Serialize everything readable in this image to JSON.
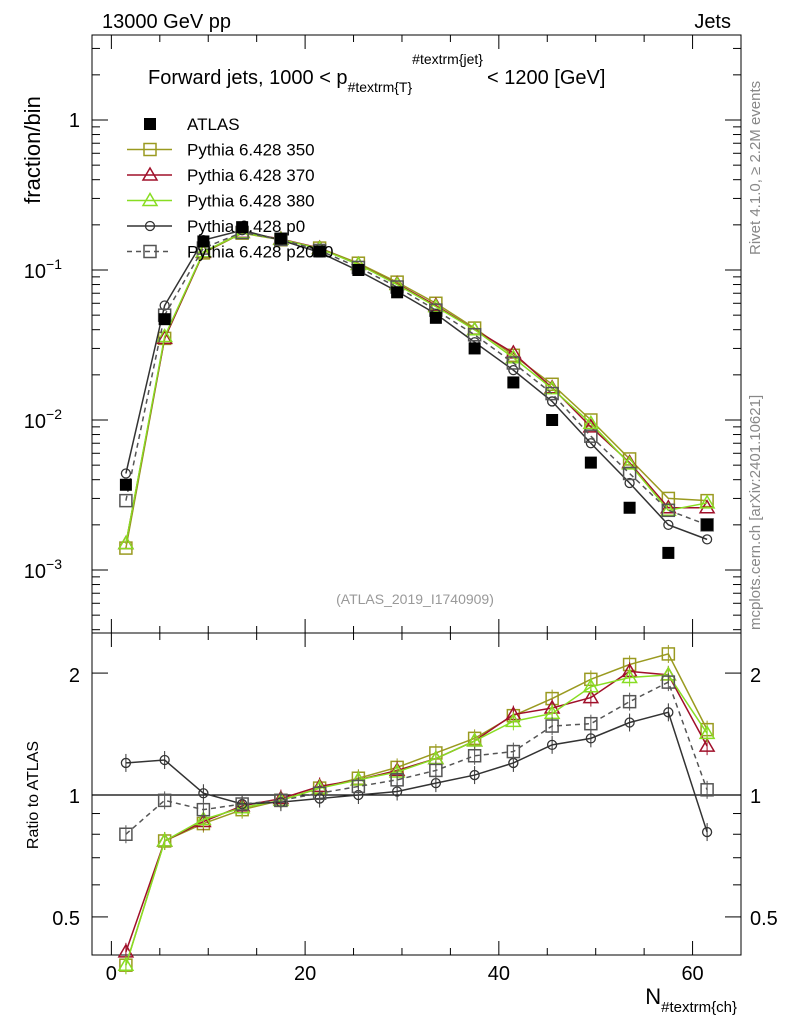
{
  "header": {
    "left": "13000 GeV pp",
    "right": "Jets"
  },
  "side_labels": {
    "rivet": "Rivet 4.1.0, ≥ 2.2M events",
    "mcplots": "mcplots.cern.ch [arXiv:2401.10621]"
  },
  "chart_data": {
    "type": "scatter",
    "title": "Forward jets, 1000 < p_{#textrm{T}}^{#textrm{jet}} < 1200 [GeV]",
    "title_main": "Forward jets, 1000 < p",
    "title_sub": "#textrm{T}",
    "title_sup": "#textrm{jet}",
    "title_end": "< 1200 [GeV]",
    "ylabel": "fraction/bin",
    "ratio_ylabel": "Ratio to ATLAS",
    "xlabel_main": "N",
    "xlabel_sub": "#textrm{ch}",
    "analysis_tag": "(ATLAS_2019_I1740909)",
    "yscale": "log",
    "ylim": [
      0.0003,
      4
    ],
    "xlim": [
      -2,
      65
    ],
    "ratio_ylim": [
      0.4,
      2.4
    ],
    "x_ticks": [
      "0",
      "20",
      "40",
      "60"
    ],
    "y_ticks": [
      "1",
      "10^{-1}",
      "10^{-2}",
      "10^{-3}"
    ],
    "ratio_ticks": [
      "0.5",
      "1",
      "2"
    ],
    "x": [
      1.5,
      5.5,
      9.5,
      13.5,
      17.5,
      21.5,
      25.5,
      29.5,
      33.5,
      37.5,
      41.5,
      45.5,
      49.5,
      53.5,
      57.5,
      61.5
    ],
    "series": [
      {
        "name": "ATLAS",
        "color": "#000000",
        "marker": "filled-square",
        "line": "none",
        "values": [
          0.0037,
          0.047,
          0.155,
          0.193,
          0.162,
          0.133,
          0.1,
          0.071,
          0.048,
          0.03,
          0.0178,
          0.01,
          0.0052,
          0.0026,
          0.0013,
          0.002
        ]
      },
      {
        "name": "Pythia 6.428 350",
        "color": "#9a9a20",
        "marker": "open-square",
        "line": "solid",
        "values": [
          0.0014,
          0.035,
          0.13,
          0.176,
          0.159,
          0.14,
          0.111,
          0.083,
          0.06,
          0.041,
          0.027,
          0.0173,
          0.01,
          0.0055,
          0.003,
          0.0029
        ],
        "ratio": [
          0.38,
          0.77,
          0.85,
          0.92,
          0.97,
          1.04,
          1.1,
          1.17,
          1.27,
          1.38,
          1.57,
          1.73,
          1.93,
          2.1,
          2.23,
          1.45
        ]
      },
      {
        "name": "Pythia 6.428 370",
        "color": "#a0102a",
        "marker": "open-triangle",
        "line": "solid",
        "values": [
          0.0015,
          0.035,
          0.131,
          0.178,
          0.161,
          0.14,
          0.109,
          0.081,
          0.058,
          0.04,
          0.028,
          0.0164,
          0.009,
          0.0052,
          0.0026,
          0.0026
        ],
        "ratio": [
          0.41,
          0.77,
          0.86,
          0.94,
          0.98,
          1.05,
          1.09,
          1.15,
          1.23,
          1.36,
          1.58,
          1.64,
          1.74,
          2.02,
          1.98,
          1.32
        ]
      },
      {
        "name": "Pythia 6.428 380",
        "color": "#88dd22",
        "marker": "open-triangle",
        "line": "solid",
        "values": [
          0.0015,
          0.036,
          0.132,
          0.177,
          0.16,
          0.139,
          0.109,
          0.08,
          0.057,
          0.04,
          0.026,
          0.0162,
          0.0095,
          0.0051,
          0.0025,
          0.0028
        ],
        "ratio": [
          0.38,
          0.77,
          0.87,
          0.93,
          0.97,
          1.04,
          1.09,
          1.14,
          1.23,
          1.36,
          1.52,
          1.59,
          1.85,
          1.95,
          1.98,
          1.42
        ]
      },
      {
        "name": "Pythia 6.428 p0",
        "color": "#333333",
        "marker": "open-circle",
        "line": "solid",
        "values": [
          0.0044,
          0.058,
          0.158,
          0.184,
          0.158,
          0.131,
          0.099,
          0.072,
          0.051,
          0.033,
          0.0215,
          0.0133,
          0.007,
          0.0038,
          0.002,
          0.0016
        ],
        "ratio": [
          1.2,
          1.22,
          1.01,
          0.95,
          0.96,
          0.98,
          1.0,
          1.02,
          1.07,
          1.12,
          1.2,
          1.33,
          1.38,
          1.51,
          1.6,
          0.81
        ]
      },
      {
        "name": "Pythia 6.428 p2010",
        "color": "#555555",
        "marker": "open-square",
        "line": "dashed",
        "values": [
          0.0029,
          0.05,
          0.14,
          0.178,
          0.16,
          0.135,
          0.104,
          0.077,
          0.054,
          0.037,
          0.024,
          0.015,
          0.0078,
          0.0044,
          0.0025,
          0.002
        ],
        "ratio": [
          0.8,
          0.97,
          0.92,
          0.95,
          0.97,
          1.01,
          1.05,
          1.09,
          1.15,
          1.25,
          1.28,
          1.48,
          1.5,
          1.7,
          1.9,
          1.03
        ]
      }
    ]
  }
}
